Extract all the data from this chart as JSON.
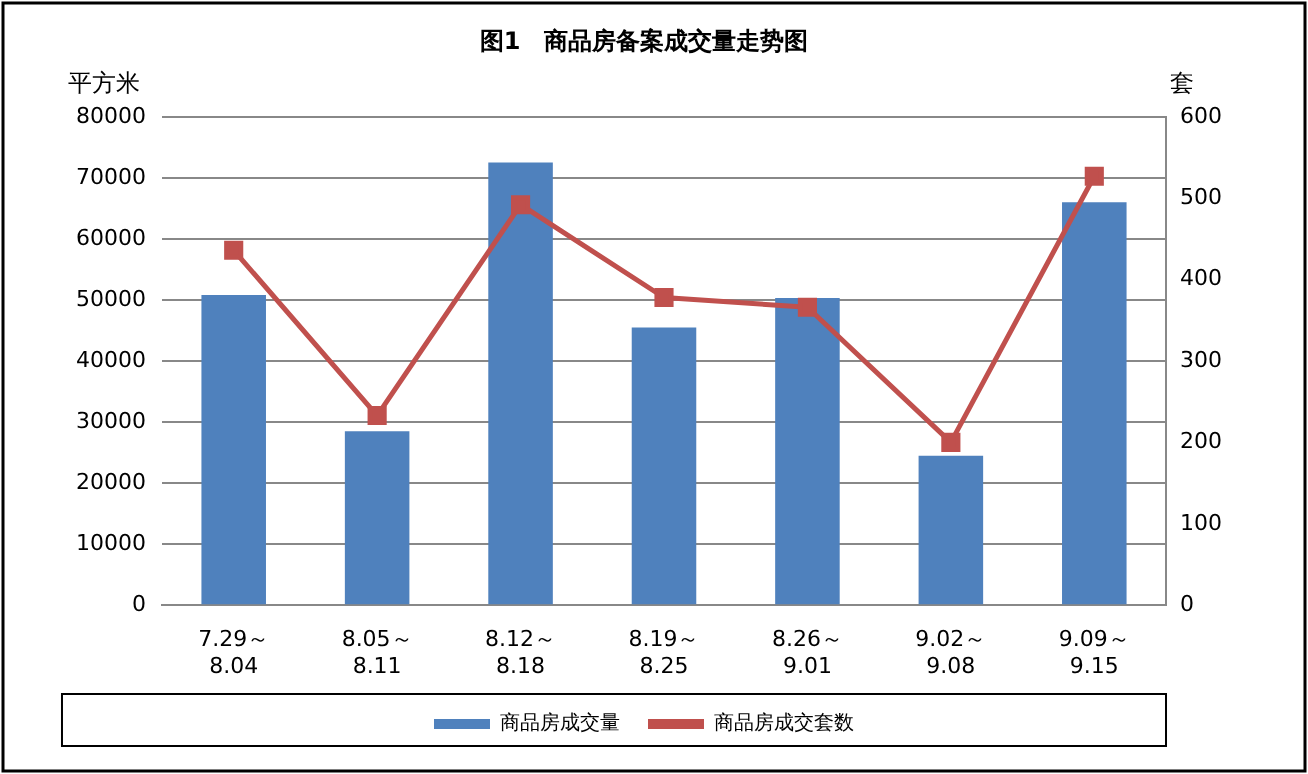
{
  "chart_data": {
    "type": "bar",
    "title": "图1　商品房备案成交量走势图",
    "ylabel": "平方米",
    "y2label": "套",
    "categories": [
      "7.29～8.04",
      "8.05～8.11",
      "8.12～8.18",
      "8.19～8.25",
      "8.26～9.01",
      "9.02～9.08",
      "9.09～9.15"
    ],
    "series": [
      {
        "name": "商品房成交量",
        "color": "#4f81bd",
        "values": [
          50800,
          28500,
          72500,
          45500,
          50300,
          24500,
          66000
        ]
      },
      {
        "name": "商品房成交套数",
        "type": "line",
        "axis": "y2",
        "color": "#c0504d",
        "marker": "square",
        "values": [
          436,
          233,
          492,
          378,
          366,
          200,
          527
        ]
      }
    ],
    "ylim": [
      0,
      80000
    ],
    "yticks": [
      0,
      10000,
      20000,
      30000,
      40000,
      50000,
      60000,
      70000,
      80000
    ],
    "y2lim": [
      0,
      600
    ],
    "y2ticks": [
      0,
      100,
      200,
      300,
      400,
      500,
      600
    ],
    "grid": "y",
    "legend": "bottom"
  }
}
